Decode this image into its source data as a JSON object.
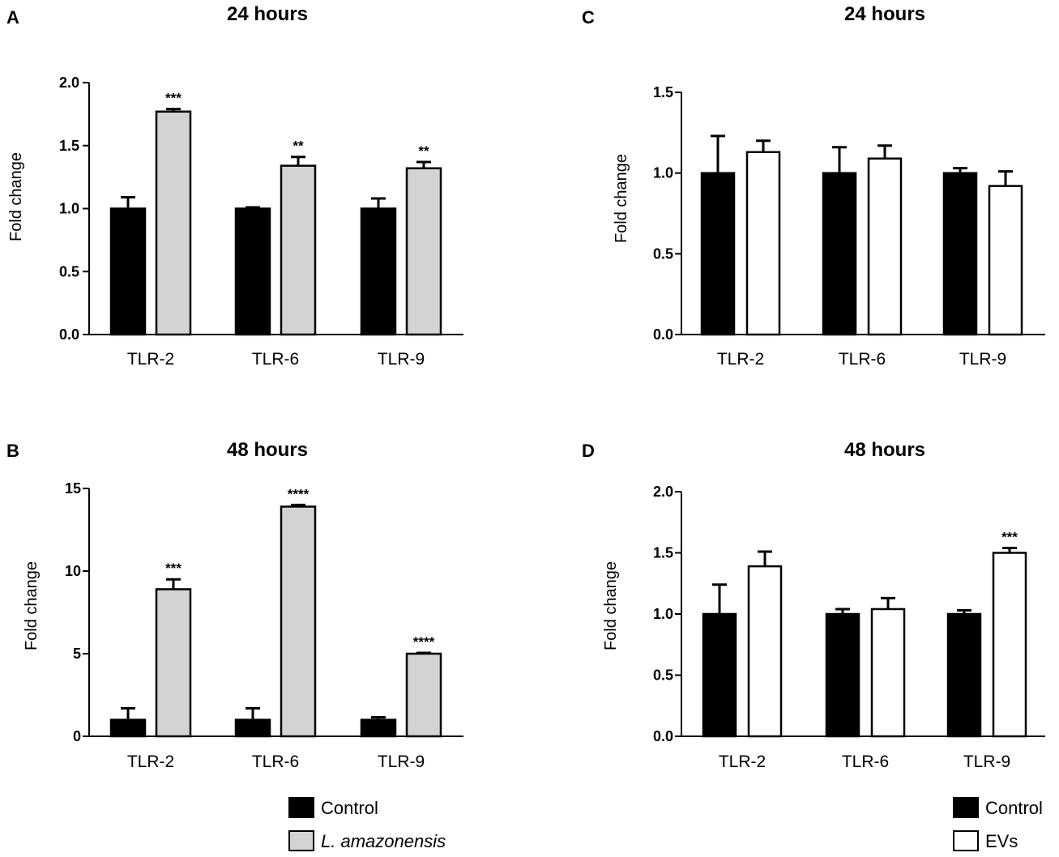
{
  "chart_data": [
    {
      "id": "A",
      "type": "bar",
      "panel_letter": "A",
      "title": "24 hours",
      "ylabel": "Fold change",
      "xlabel": "",
      "ylim": [
        0,
        2.0
      ],
      "yticks": [
        "0.0",
        "0.5",
        "1.0",
        "1.5",
        "2.0"
      ],
      "categories": [
        "TLR-2",
        "TLR-6",
        "TLR-9"
      ],
      "series": [
        {
          "name": "Control",
          "color": "#000000",
          "values": [
            1.0,
            1.0,
            1.0
          ],
          "errors": [
            0.09,
            0.01,
            0.08
          ]
        },
        {
          "name": "L. amazonensis",
          "color": "#d3d3d3",
          "values": [
            1.77,
            1.34,
            1.32
          ],
          "errors": [
            0.02,
            0.07,
            0.05
          ]
        }
      ],
      "significance": [
        "***",
        "**",
        "**"
      ]
    },
    {
      "id": "B",
      "type": "bar",
      "panel_letter": "B",
      "title": "48 hours",
      "ylabel": "Fold change",
      "xlabel": "",
      "ylim": [
        0,
        15
      ],
      "yticks": [
        "0",
        "5",
        "10",
        "15"
      ],
      "categories": [
        "TLR-2",
        "TLR-6",
        "TLR-9"
      ],
      "series": [
        {
          "name": "Control",
          "color": "#000000",
          "values": [
            1.0,
            1.0,
            1.0
          ],
          "errors": [
            0.7,
            0.7,
            0.15
          ]
        },
        {
          "name": "L. amazonensis",
          "color": "#d3d3d3",
          "values": [
            8.9,
            13.9,
            5.0
          ],
          "errors": [
            0.6,
            0.1,
            0.05
          ]
        }
      ],
      "significance": [
        "***",
        "****",
        "****"
      ]
    },
    {
      "id": "C",
      "type": "bar",
      "panel_letter": "C",
      "title": "24 hours",
      "ylabel": "Fold change",
      "xlabel": "",
      "ylim": [
        0,
        1.5
      ],
      "yticks": [
        "0.0",
        "0.5",
        "1.0",
        "1.5"
      ],
      "categories": [
        "TLR-2",
        "TLR-6",
        "TLR-9"
      ],
      "series": [
        {
          "name": "Control",
          "color": "#000000",
          "values": [
            1.0,
            1.0,
            1.0
          ],
          "errors": [
            0.23,
            0.16,
            0.03
          ]
        },
        {
          "name": "EVs",
          "color": "#ffffff",
          "values": [
            1.13,
            1.09,
            0.92
          ],
          "errors": [
            0.07,
            0.08,
            0.09
          ]
        }
      ],
      "significance": [
        "",
        "",
        ""
      ]
    },
    {
      "id": "D",
      "type": "bar",
      "panel_letter": "D",
      "title": "48 hours",
      "ylabel": "Fold change",
      "xlabel": "",
      "ylim": [
        0,
        2.0
      ],
      "yticks": [
        "0.0",
        "0.5",
        "1.0",
        "1.5",
        "2.0"
      ],
      "categories": [
        "TLR-2",
        "TLR-6",
        "TLR-9"
      ],
      "series": [
        {
          "name": "Control",
          "color": "#000000",
          "values": [
            1.0,
            1.0,
            1.0
          ],
          "errors": [
            0.24,
            0.04,
            0.03
          ]
        },
        {
          "name": "EVs",
          "color": "#ffffff",
          "values": [
            1.39,
            1.04,
            1.5
          ],
          "errors": [
            0.12,
            0.09,
            0.04
          ]
        }
      ],
      "significance": [
        "",
        "",
        "***"
      ]
    }
  ],
  "legends": [
    {
      "id": "left",
      "items": [
        {
          "label": "Control",
          "color": "#000000",
          "italic": false
        },
        {
          "label": "L. amazonensis",
          "color": "#d3d3d3",
          "italic": true
        }
      ]
    },
    {
      "id": "right",
      "items": [
        {
          "label": "Control",
          "color": "#000000",
          "italic": false
        },
        {
          "label": "EVs",
          "color": "#ffffff",
          "italic": false
        }
      ]
    }
  ]
}
